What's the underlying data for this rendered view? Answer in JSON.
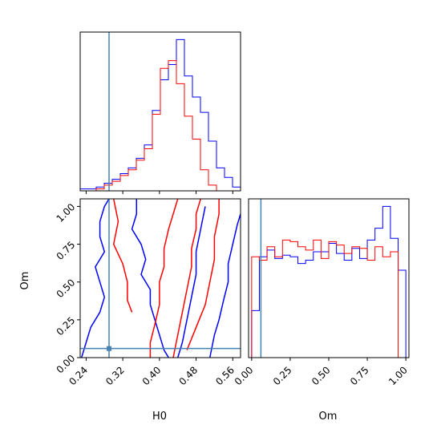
{
  "chart_data": [
    {
      "type": "histogram",
      "panel": "H0 marginal",
      "xlim": [
        0.227,
        0.577
      ],
      "series": [
        {
          "name": "",
          "color": "#0000ff",
          "bins": [
            0.227,
            0.2445,
            0.262,
            0.2795,
            0.297,
            0.3145,
            0.332,
            0.3495,
            0.367,
            0.3845,
            0.402,
            0.4195,
            0.437,
            0.4545,
            0.472,
            0.4895,
            0.507,
            0.5245,
            0.542,
            0.5595,
            0.577
          ],
          "counts": [
            1,
            1,
            2,
            4,
            6,
            9,
            12,
            17,
            24,
            42,
            58,
            66,
            79,
            60,
            49,
            41,
            26,
            12,
            7,
            2
          ]
        },
        {
          "name": "",
          "color": "#ff0000",
          "bins": [
            0.227,
            0.2445,
            0.262,
            0.2795,
            0.297,
            0.3145,
            0.332,
            0.3495,
            0.367,
            0.3845,
            0.402,
            0.4195,
            0.437,
            0.4545,
            0.472,
            0.4895,
            0.507,
            0.5245,
            0.542,
            0.5595,
            0.577
          ],
          "counts": [
            0,
            0,
            1,
            3,
            5,
            8,
            11,
            16,
            22,
            40,
            64,
            68,
            56,
            39,
            27,
            11,
            3,
            0,
            0,
            0
          ]
        }
      ],
      "truth_line": 0.29
    },
    {
      "type": "contour",
      "panel": "H0 vs Om",
      "xlabel": "H0",
      "ylabel": "Om",
      "xlim": [
        0.227,
        0.577
      ],
      "ylim": [
        0.0,
        1.05
      ],
      "xticks": [
        "0.24",
        "0.32",
        "0.40",
        "0.48",
        "0.56"
      ],
      "xtick_values": [
        0.24,
        0.32,
        0.4,
        0.48,
        0.56
      ],
      "yticks": [
        "0.00",
        "0.25",
        "0.50",
        "0.75",
        "1.00"
      ],
      "ytick_values": [
        0.0,
        0.25,
        0.5,
        0.75,
        1.0
      ],
      "truth": [
        0.29,
        0.06
      ],
      "series": [
        {
          "name": "",
          "color": "#0000ff",
          "contours": [
            [
              [
                0.23,
                0.0
              ],
              [
                0.24,
                0.1
              ],
              [
                0.25,
                0.2
              ],
              [
                0.27,
                0.3
              ],
              [
                0.28,
                0.4
              ],
              [
                0.27,
                0.5
              ],
              [
                0.26,
                0.6
              ],
              [
                0.28,
                0.7
              ],
              [
                0.27,
                0.8
              ],
              [
                0.27,
                0.9
              ],
              [
                0.28,
                1.0
              ],
              [
                0.29,
                1.05
              ]
            ],
            [
              [
                0.35,
                1.05
              ],
              [
                0.35,
                0.95
              ],
              [
                0.34,
                0.85
              ],
              [
                0.36,
                0.75
              ],
              [
                0.37,
                0.65
              ],
              [
                0.36,
                0.55
              ],
              [
                0.38,
                0.45
              ],
              [
                0.38,
                0.35
              ],
              [
                0.39,
                0.25
              ],
              [
                0.4,
                0.15
              ],
              [
                0.41,
                0.05
              ],
              [
                0.42,
                0.0
              ]
            ],
            [
              [
                0.51,
                0.0
              ],
              [
                0.52,
                0.15
              ],
              [
                0.53,
                0.25
              ],
              [
                0.54,
                0.38
              ],
              [
                0.55,
                0.5
              ],
              [
                0.55,
                0.62
              ],
              [
                0.56,
                0.75
              ],
              [
                0.57,
                0.88
              ],
              [
                0.577,
                0.95
              ]
            ],
            [
              [
                0.44,
                0.0
              ],
              [
                0.45,
                0.1
              ],
              [
                0.46,
                0.25
              ],
              [
                0.47,
                0.4
              ],
              [
                0.48,
                0.55
              ],
              [
                0.48,
                0.7
              ],
              [
                0.49,
                0.85
              ],
              [
                0.5,
                1.0
              ]
            ]
          ]
        },
        {
          "name": "",
          "color": "#ff0000",
          "contours": [
            [
              [
                0.3,
                1.05
              ],
              [
                0.31,
                0.9
              ],
              [
                0.3,
                0.75
              ],
              [
                0.32,
                0.62
              ],
              [
                0.33,
                0.5
              ],
              [
                0.33,
                0.38
              ],
              [
                0.34,
                0.3
              ]
            ],
            [
              [
                0.38,
                0.0
              ],
              [
                0.38,
                0.1
              ],
              [
                0.39,
                0.22
              ],
              [
                0.4,
                0.35
              ],
              [
                0.4,
                0.5
              ],
              [
                0.41,
                0.6
              ],
              [
                0.41,
                0.72
              ],
              [
                0.42,
                0.85
              ],
              [
                0.43,
                0.95
              ],
              [
                0.44,
                1.05
              ]
            ],
            [
              [
                0.43,
                0.0
              ],
              [
                0.44,
                0.15
              ],
              [
                0.45,
                0.3
              ],
              [
                0.46,
                0.45
              ],
              [
                0.47,
                0.6
              ],
              [
                0.47,
                0.72
              ],
              [
                0.48,
                0.85
              ],
              [
                0.48,
                0.95
              ],
              [
                0.49,
                1.05
              ]
            ],
            [
              [
                0.46,
                0.05
              ],
              [
                0.48,
                0.2
              ],
              [
                0.5,
                0.35
              ],
              [
                0.51,
                0.5
              ],
              [
                0.52,
                0.65
              ],
              [
                0.52,
                0.8
              ],
              [
                0.53,
                0.95
              ],
              [
                0.53,
                1.05
              ]
            ]
          ]
        }
      ]
    },
    {
      "type": "histogram",
      "panel": "Om marginal",
      "xlabel": "Om",
      "xlim": [
        -0.02,
        1.02
      ],
      "xticks": [
        "0.00",
        "0.25",
        "0.50",
        "0.75",
        "1.00"
      ],
      "xtick_values": [
        0.0,
        0.25,
        0.5,
        0.75,
        1.0
      ],
      "series": [
        {
          "name": "",
          "color": "#0000ff",
          "bins": [
            0.0,
            0.05,
            0.1,
            0.15,
            0.2,
            0.25,
            0.3,
            0.35,
            0.4,
            0.45,
            0.5,
            0.55,
            0.6,
            0.65,
            0.7,
            0.75,
            0.8,
            0.85,
            0.9,
            0.95,
            1.0
          ],
          "counts": [
            28,
            60,
            64,
            59,
            61,
            60,
            56,
            58,
            63,
            63,
            68,
            62,
            58,
            65,
            59,
            70,
            77,
            90,
            71,
            52
          ]
        },
        {
          "name": "",
          "color": "#ff0000",
          "bins": [
            0.0,
            0.05,
            0.1,
            0.15,
            0.2,
            0.25,
            0.3,
            0.35,
            0.4,
            0.45,
            0.5,
            0.55,
            0.6,
            0.65,
            0.7,
            0.75,
            0.8,
            0.85,
            0.9,
            0.95,
            1.0
          ],
          "counts": [
            60,
            58,
            66,
            60,
            70,
            69,
            66,
            64,
            70,
            59,
            69,
            67,
            62,
            66,
            65,
            58,
            66,
            60,
            63,
            0
          ]
        }
      ],
      "truth_line": 0.06
    }
  ],
  "colors": {
    "line_blue": "#0000ff",
    "line_red": "#ff0000",
    "truth": "#4682b4"
  }
}
